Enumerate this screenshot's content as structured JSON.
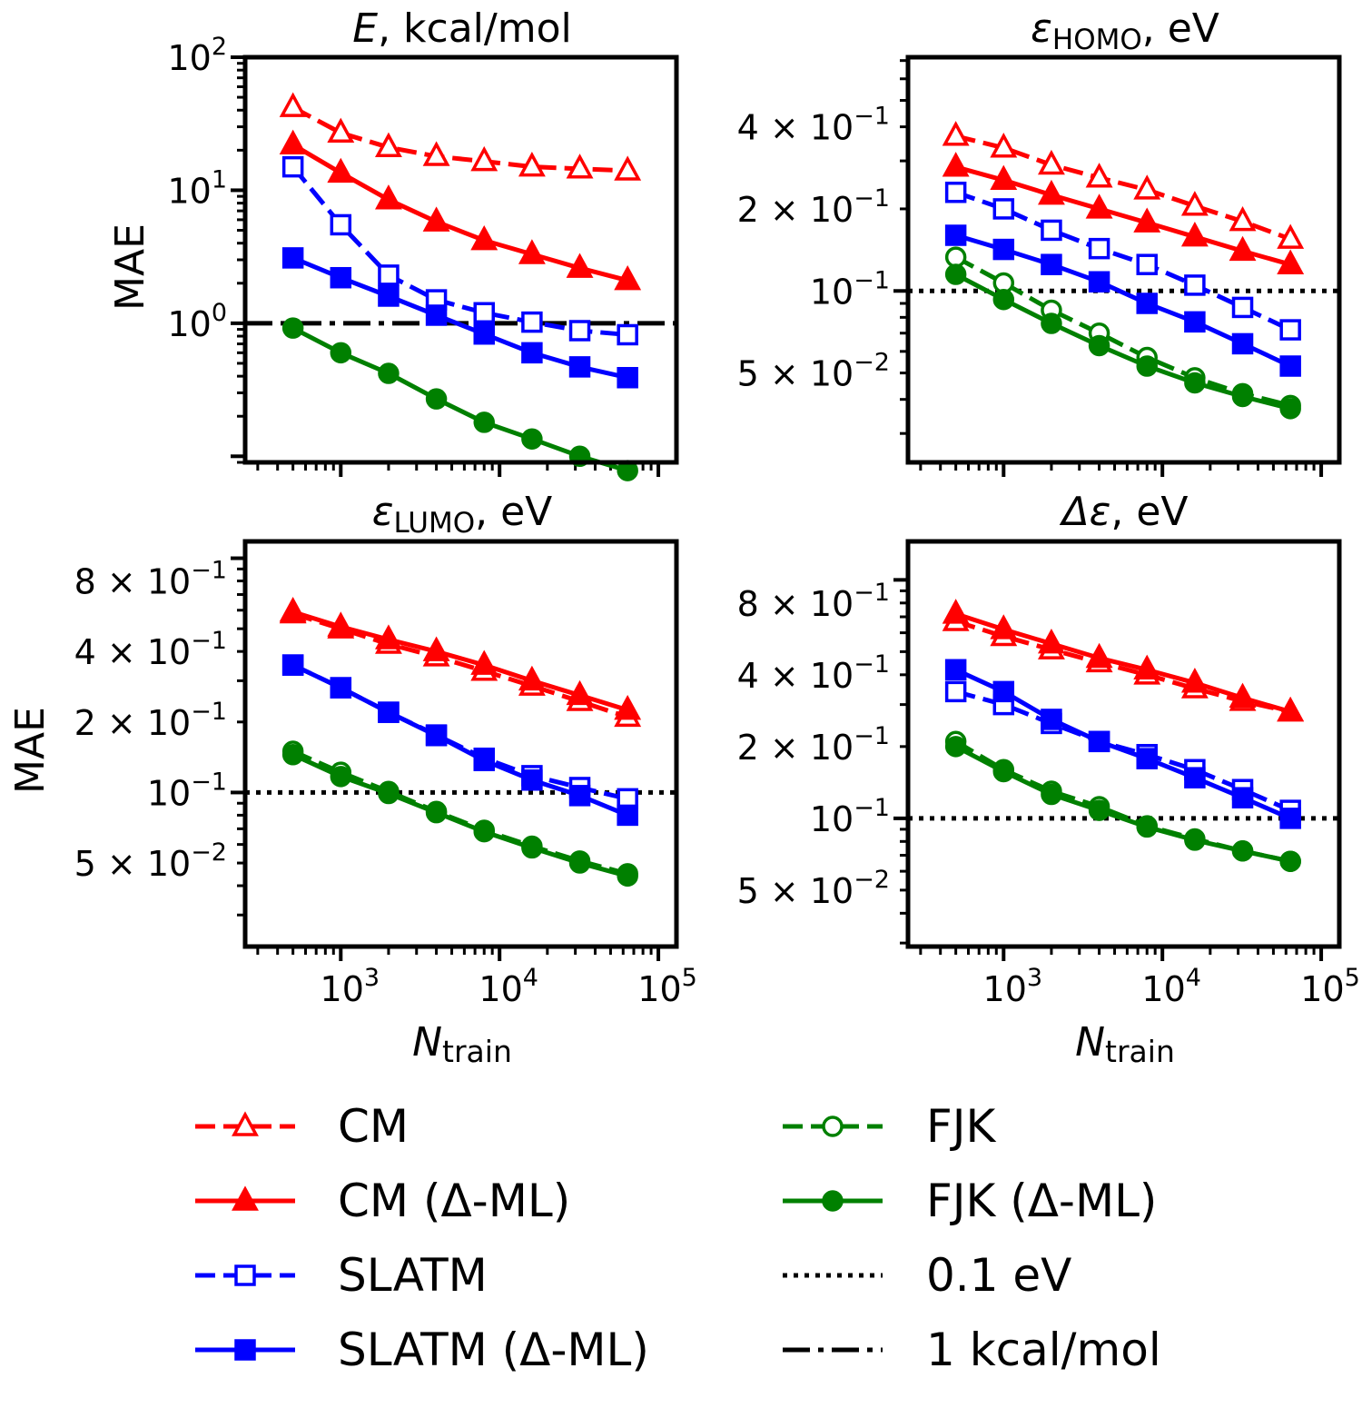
{
  "chart_data": [
    {
      "type": "line",
      "title": "E, kcal/mol",
      "xlabel": "",
      "ylabel": "MAE",
      "xscale": "log",
      "yscale": "log",
      "xlim": [
        250,
        130000
      ],
      "ylim": [
        0.09,
        100
      ],
      "x": [
        500,
        1000,
        2000,
        4000,
        8000,
        16000,
        32000,
        64000
      ],
      "ytick_labels": [
        {
          "value": 1,
          "base": "10",
          "exp": "0"
        },
        {
          "value": 10,
          "base": "10",
          "exp": "1"
        },
        {
          "value": 100,
          "base": "10",
          "exp": "2"
        }
      ],
      "series": [
        {
          "name": "CM",
          "values": [
            42,
            27,
            21,
            18,
            16.5,
            15,
            14.5,
            14
          ]
        },
        {
          "name": "CM (Δ-ML)",
          "values": [
            22,
            13.5,
            8.5,
            5.8,
            4.2,
            3.3,
            2.6,
            2.1
          ]
        },
        {
          "name": "SLATM",
          "values": [
            15,
            5.5,
            2.3,
            1.5,
            1.2,
            1.02,
            0.88,
            0.82
          ]
        },
        {
          "name": "SLATM (Δ-ML)",
          "values": [
            3.1,
            2.2,
            1.6,
            1.15,
            0.83,
            0.6,
            0.47,
            0.39
          ]
        },
        {
          "name": "FJK (Δ-ML)",
          "values": [
            0.92,
            0.6,
            0.42,
            0.27,
            0.18,
            0.135,
            0.1,
            0.078
          ]
        }
      ],
      "reference_lines": [
        {
          "name": "1 kcal/mol",
          "value": 1
        }
      ]
    },
    {
      "type": "line",
      "title": "ε_HOMO, eV",
      "title_parts": {
        "symbol": "ε",
        "sub": "HOMO",
        "rest": ", eV"
      },
      "xlabel": "",
      "ylabel": "",
      "xscale": "log",
      "yscale": "log",
      "xlim": [
        250,
        130000
      ],
      "ylim": [
        0.0235,
        0.72
      ],
      "x": [
        500,
        1000,
        2000,
        4000,
        8000,
        16000,
        32000,
        64000
      ],
      "ytick_labels": [
        {
          "value": 0.05,
          "coef": "5",
          "times": "×",
          "base": "10",
          "exp": "−2"
        },
        {
          "value": 0.1,
          "coef": "",
          "times": "",
          "base": "10",
          "exp": "−1"
        },
        {
          "value": 0.2,
          "coef": "2",
          "times": "×",
          "base": "10",
          "exp": "−1"
        },
        {
          "value": 0.4,
          "coef": "4",
          "times": "×",
          "base": "10",
          "exp": "−1"
        }
      ],
      "series": [
        {
          "name": "CM",
          "values": [
            0.37,
            0.335,
            0.29,
            0.26,
            0.235,
            0.205,
            0.18,
            0.155
          ]
        },
        {
          "name": "CM (Δ-ML)",
          "values": [
            0.285,
            0.255,
            0.225,
            0.2,
            0.178,
            0.158,
            0.14,
            0.125
          ]
        },
        {
          "name": "SLATM",
          "values": [
            0.23,
            0.2,
            0.167,
            0.143,
            0.125,
            0.105,
            0.087,
            0.072
          ]
        },
        {
          "name": "SLATM (Δ-ML)",
          "values": [
            0.16,
            0.142,
            0.125,
            0.108,
            0.09,
            0.077,
            0.064,
            0.053
          ]
        },
        {
          "name": "FJK",
          "values": [
            0.133,
            0.107,
            0.085,
            0.07,
            0.057,
            0.048,
            0.042,
            0.038
          ]
        },
        {
          "name": "FJK (Δ-ML)",
          "values": [
            0.115,
            0.093,
            0.076,
            0.063,
            0.053,
            0.046,
            0.041,
            0.037
          ]
        }
      ],
      "reference_lines": [
        {
          "name": "0.1 eV",
          "value": 0.1
        }
      ]
    },
    {
      "type": "line",
      "title": "ε_LUMO, eV",
      "title_parts": {
        "symbol": "ε",
        "sub": "LUMO",
        "rest": ", eV"
      },
      "xlabel": "N_train",
      "ylabel": "MAE",
      "xscale": "log",
      "yscale": "log",
      "xlim": [
        250,
        130000
      ],
      "ylim": [
        0.022,
        1.18
      ],
      "x": [
        500,
        1000,
        2000,
        4000,
        8000,
        16000,
        32000,
        64000
      ],
      "xtick_labels": [
        {
          "value": 1000,
          "base": "10",
          "exp": "3"
        },
        {
          "value": 10000,
          "base": "10",
          "exp": "4"
        },
        {
          "value": 100000,
          "base": "10",
          "exp": "5"
        }
      ],
      "ytick_labels": [
        {
          "value": 0.05,
          "coef": "5",
          "times": "×",
          "base": "10",
          "exp": "−2"
        },
        {
          "value": 0.1,
          "coef": "",
          "times": "",
          "base": "10",
          "exp": "−1"
        },
        {
          "value": 0.2,
          "coef": "2",
          "times": "×",
          "base": "10",
          "exp": "−1"
        },
        {
          "value": 0.4,
          "coef": "4",
          "times": "×",
          "base": "10",
          "exp": "−1"
        },
        {
          "value": 0.8,
          "coef": "8",
          "times": "×",
          "base": "10",
          "exp": "−1"
        }
      ],
      "series": [
        {
          "name": "CM",
          "values": [
            0.58,
            0.5,
            0.43,
            0.38,
            0.33,
            0.285,
            0.245,
            0.21
          ]
        },
        {
          "name": "CM (Δ-ML)",
          "values": [
            0.59,
            0.51,
            0.45,
            0.4,
            0.35,
            0.3,
            0.26,
            0.225
          ]
        },
        {
          "name": "SLATM",
          "values": [
            0.35,
            0.28,
            0.22,
            0.176,
            0.14,
            0.118,
            0.105,
            0.094
          ]
        },
        {
          "name": "SLATM (Δ-ML)",
          "values": [
            0.35,
            0.28,
            0.22,
            0.175,
            0.137,
            0.113,
            0.097,
            0.08
          ]
        },
        {
          "name": "FJK",
          "values": [
            0.15,
            0.122,
            0.101,
            0.083,
            0.069,
            0.059,
            0.051,
            0.045
          ]
        },
        {
          "name": "FJK (Δ-ML)",
          "values": [
            0.145,
            0.117,
            0.099,
            0.082,
            0.068,
            0.058,
            0.05,
            0.044
          ]
        }
      ],
      "reference_lines": [
        {
          "name": "0.1 eV",
          "value": 0.1
        }
      ]
    },
    {
      "type": "line",
      "title": "Δε, eV",
      "title_parts": {
        "symbol": "Δε",
        "sub": "",
        "rest": ", eV"
      },
      "xlabel": "N_train",
      "ylabel": "",
      "xscale": "log",
      "yscale": "log",
      "xlim": [
        250,
        130000
      ],
      "ylim": [
        0.029,
        1.45
      ],
      "x": [
        500,
        1000,
        2000,
        4000,
        8000,
        16000,
        32000,
        64000
      ],
      "xtick_labels": [
        {
          "value": 1000,
          "base": "10",
          "exp": "3"
        },
        {
          "value": 10000,
          "base": "10",
          "exp": "4"
        },
        {
          "value": 100000,
          "base": "10",
          "exp": "5"
        }
      ],
      "ytick_labels": [
        {
          "value": 0.05,
          "coef": "5",
          "times": "×",
          "base": "10",
          "exp": "−2"
        },
        {
          "value": 0.1,
          "coef": "",
          "times": "",
          "base": "10",
          "exp": "−1"
        },
        {
          "value": 0.2,
          "coef": "2",
          "times": "×",
          "base": "10",
          "exp": "−1"
        },
        {
          "value": 0.4,
          "coef": "4",
          "times": "×",
          "base": "10",
          "exp": "−1"
        },
        {
          "value": 0.8,
          "coef": "8",
          "times": "×",
          "base": "10",
          "exp": "−1"
        }
      ],
      "series": [
        {
          "name": "CM",
          "values": [
            0.67,
            0.58,
            0.51,
            0.45,
            0.4,
            0.35,
            0.31,
            0.28
          ]
        },
        {
          "name": "CM (Δ-ML)",
          "values": [
            0.72,
            0.62,
            0.54,
            0.47,
            0.42,
            0.37,
            0.32,
            0.28
          ]
        },
        {
          "name": "SLATM",
          "values": [
            0.34,
            0.3,
            0.25,
            0.21,
            0.185,
            0.16,
            0.132,
            0.108
          ]
        },
        {
          "name": "SLATM (Δ-ML)",
          "values": [
            0.42,
            0.34,
            0.26,
            0.21,
            0.178,
            0.148,
            0.122,
            0.1
          ]
        },
        {
          "name": "FJK",
          "values": [
            0.21,
            0.16,
            0.13,
            0.112,
            0.093,
            0.082,
            0.073,
            0.066
          ]
        },
        {
          "name": "FJK (Δ-ML)",
          "values": [
            0.2,
            0.157,
            0.126,
            0.108,
            0.092,
            0.081,
            0.073,
            0.066
          ]
        }
      ],
      "reference_lines": [
        {
          "name": "0.1 eV",
          "value": 0.1
        }
      ]
    }
  ],
  "legend": [
    {
      "name": "CM",
      "color": "#ff0000",
      "line": "dashed",
      "marker": "triangle",
      "filled": false
    },
    {
      "name": "CM (Δ-ML)",
      "color": "#ff0000",
      "line": "solid",
      "marker": "triangle",
      "filled": true
    },
    {
      "name": "SLATM",
      "color": "#0000ff",
      "line": "dashed",
      "marker": "square",
      "filled": false
    },
    {
      "name": "SLATM (Δ-ML)",
      "color": "#0000ff",
      "line": "solid",
      "marker": "square",
      "filled": true
    },
    {
      "name": "FJK",
      "color": "#008000",
      "line": "dashed",
      "marker": "circle",
      "filled": false
    },
    {
      "name": "FJK (Δ-ML)",
      "color": "#008000",
      "line": "solid",
      "marker": "circle",
      "filled": true
    },
    {
      "name": "0.1 eV",
      "color": "#000000",
      "line": "dotted",
      "marker": "none",
      "filled": false
    },
    {
      "name": "1 kcal/mol",
      "color": "#000000",
      "line": "dashdot",
      "marker": "none",
      "filled": false
    }
  ],
  "labels": {
    "mae": "MAE",
    "n_symbol": "N",
    "n_sub": "train",
    "e_symbol": "E",
    "e_rest": ", kcal/mol"
  }
}
